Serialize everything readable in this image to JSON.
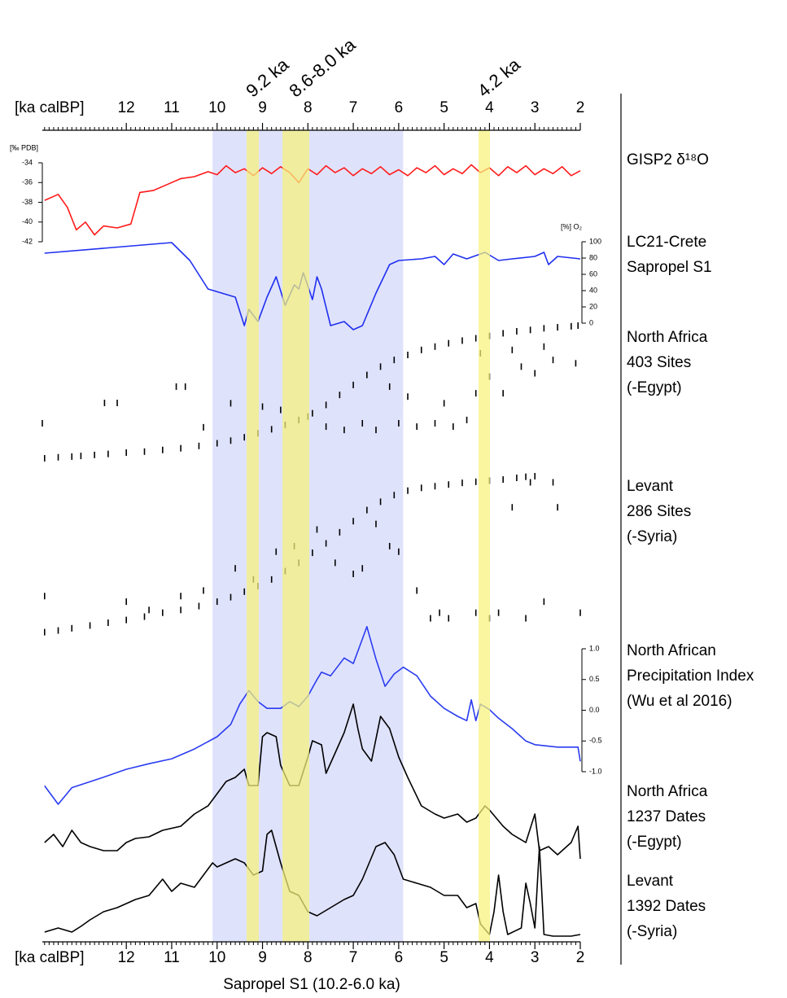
{
  "chart_data": {
    "type": "panels",
    "xlabel": "Sapropel S1 (10.2-6.0 ka)",
    "xunit": "[ka calBP]",
    "xlim": [
      13.85,
      2
    ],
    "xticks": [
      12,
      11,
      10,
      9,
      8,
      7,
      6,
      5,
      4,
      3,
      2
    ],
    "bands": [
      {
        "from": 10.1,
        "to": 5.9,
        "color": "#dfe2fb"
      },
      {
        "from": 9.35,
        "to": 9.08,
        "color": "#f6f27a",
        "label": "9.2 ka"
      },
      {
        "from": 8.56,
        "to": 7.97,
        "color": "#f6f27a",
        "label": "8.6-8.0 ka"
      },
      {
        "from": 4.24,
        "to": 3.99,
        "color": "#f6f27a",
        "label": "4.2 ka"
      }
    ],
    "panels": [
      {
        "type": "line",
        "label": [
          "GISP2 δ¹⁸O"
        ],
        "color": "#ff1a1a",
        "ylabel": "[‰ PDB]",
        "yaxis": "left",
        "ylim": [
          -42,
          -34
        ],
        "yticks": [
          -34,
          -36,
          -38,
          -40,
          -42
        ],
        "x": [
          13.8,
          13.5,
          13.3,
          13.1,
          12.9,
          12.7,
          12.5,
          12.2,
          11.9,
          11.7,
          11.4,
          11.1,
          10.8,
          10.5,
          10.2,
          10.0,
          9.8,
          9.6,
          9.4,
          9.2,
          9.0,
          8.8,
          8.6,
          8.4,
          8.2,
          8.0,
          7.8,
          7.6,
          7.4,
          7.2,
          7.0,
          6.8,
          6.6,
          6.4,
          6.2,
          6.0,
          5.8,
          5.6,
          5.4,
          5.2,
          5.0,
          4.8,
          4.6,
          4.4,
          4.2,
          4.0,
          3.8,
          3.6,
          3.4,
          3.2,
          3.0,
          2.8,
          2.6,
          2.4,
          2.2,
          2.0
        ],
        "values": [
          -37.8,
          -37.2,
          -38.5,
          -40.8,
          -40.0,
          -41.3,
          -40.4,
          -40.6,
          -40.2,
          -37.0,
          -36.8,
          -36.2,
          -35.6,
          -35.4,
          -34.9,
          -35.2,
          -34.3,
          -35.0,
          -34.6,
          -35.3,
          -34.5,
          -35.1,
          -34.4,
          -35.0,
          -36.0,
          -34.6,
          -35.2,
          -34.3,
          -35.0,
          -34.5,
          -35.3,
          -34.6,
          -35.1,
          -34.4,
          -35.2,
          -34.7,
          -35.3,
          -34.5,
          -35.0,
          -34.3,
          -35.2,
          -34.6,
          -35.1,
          -34.2,
          -35.0,
          -34.5,
          -35.3,
          -34.4,
          -35.0,
          -34.3,
          -35.2,
          -34.6,
          -35.1,
          -34.4,
          -35.3,
          -34.8
        ]
      },
      {
        "type": "line",
        "label": [
          "LC21-Crete",
          "Sapropel S1"
        ],
        "color": "#1f2ff0",
        "ylabel": "[%] O₂",
        "yaxis": "right",
        "ylim": [
          0,
          100
        ],
        "yticks": [
          0,
          20,
          40,
          60,
          80,
          100
        ],
        "x": [
          13.8,
          11.0,
          10.6,
          10.2,
          9.9,
          9.6,
          9.4,
          9.3,
          9.1,
          8.9,
          8.7,
          8.5,
          8.3,
          8.2,
          8.1,
          7.9,
          7.8,
          7.7,
          7.5,
          7.2,
          7.0,
          6.8,
          6.5,
          6.2,
          6.0,
          5.5,
          5.2,
          5.0,
          4.8,
          4.5,
          4.1,
          3.8,
          3.5,
          3.0,
          2.8,
          2.7,
          2.5,
          2.0
        ],
        "values": [
          86,
          99,
          77,
          42,
          37,
          32,
          -3,
          17,
          2,
          32,
          57,
          22,
          47,
          42,
          62,
          29,
          57,
          42,
          -3,
          2,
          -8,
          -3,
          37,
          72,
          77,
          79,
          82,
          72,
          85,
          79,
          87,
          77,
          79,
          82,
          87,
          72,
          82,
          79
        ]
      },
      {
        "type": "scatter",
        "label": [
          "North Africa",
          "403 Sites",
          "(-Egypt)"
        ],
        "color": "#000000",
        "ylim": [
          0,
          403
        ],
        "x": [
          13.8,
          13.5,
          13.2,
          13.0,
          12.7,
          12.4,
          12.0,
          11.6,
          11.2,
          10.8,
          10.4,
          10.0,
          9.7,
          9.4,
          9.1,
          8.8,
          8.5,
          8.2,
          7.9,
          7.6,
          7.3,
          7.0,
          6.7,
          6.4,
          6.1,
          5.8,
          5.5,
          5.2,
          4.9,
          4.6,
          4.3,
          4.0,
          3.7,
          3.4,
          3.1,
          2.8,
          2.5,
          2.2,
          2.05,
          13.85,
          12.48,
          12.2,
          10.9,
          10.7,
          10.3,
          9.7,
          9.0,
          8.6,
          8.0,
          7.6,
          7.2,
          6.8,
          6.5,
          6.0,
          5.6,
          5.2,
          4.8,
          4.5,
          4.3,
          4.0,
          3.7,
          3.3,
          3.0,
          2.6,
          2.1,
          5.0,
          5.8,
          6.2,
          4.2,
          2.8,
          3.5
        ],
        "values": [
          5,
          8,
          10,
          12,
          15,
          18,
          22,
          25,
          30,
          35,
          42,
          50,
          58,
          68,
          80,
          92,
          105,
          120,
          140,
          165,
          195,
          225,
          255,
          280,
          300,
          315,
          330,
          340,
          350,
          358,
          365,
          372,
          380,
          386,
          390,
          395,
          398,
          401,
          403,
          110,
          171,
          171,
          220,
          220,
          98,
          170,
          160,
          150,
          130,
          100,
          90,
          110,
          90,
          110,
          100,
          110,
          100,
          120,
          200,
          250,
          200,
          280,
          260,
          300,
          290,
          170,
          190,
          220,
          320,
          340,
          330
        ]
      },
      {
        "type": "scatter",
        "label": [
          "Levant",
          "286 Sites",
          "(-Syria)"
        ],
        "color": "#000000",
        "ylim": [
          0,
          286
        ],
        "x": [
          13.8,
          13.5,
          13.2,
          12.8,
          12.4,
          12.0,
          11.6,
          11.2,
          10.8,
          10.4,
          10.0,
          9.7,
          9.4,
          9.1,
          8.8,
          8.5,
          8.2,
          7.9,
          7.6,
          7.3,
          7.0,
          6.7,
          6.4,
          6.1,
          5.8,
          5.5,
          5.2,
          4.9,
          4.6,
          4.3,
          4.0,
          3.7,
          3.4,
          3.2,
          3.0,
          13.8,
          12.0,
          11.5,
          10.8,
          10.3,
          9.6,
          9.2,
          8.7,
          8.3,
          7.8,
          7.4,
          7.0,
          6.8,
          6.5,
          6.2,
          6.0,
          5.6,
          5.3,
          5.1,
          4.9,
          4.3,
          4.0,
          3.8,
          3.5,
          3.2,
          2.8,
          2.5,
          2.0,
          2.6,
          3.1
        ],
        "values": [
          5,
          8,
          12,
          17,
          22,
          27,
          33,
          40,
          45,
          52,
          60,
          68,
          78,
          88,
          100,
          115,
          130,
          148,
          165,
          185,
          205,
          225,
          240,
          252,
          260,
          265,
          268,
          271,
          274,
          276,
          278,
          280,
          283,
          285,
          286,
          70,
          60,
          45,
          70,
          80,
          120,
          100,
          150,
          160,
          190,
          130,
          110,
          120,
          200,
          160,
          150,
          80,
          30,
          40,
          30,
          40,
          30,
          40,
          230,
          30,
          60,
          230,
          40,
          275,
          275
        ]
      },
      {
        "type": "line",
        "label": [
          "North African",
          "Precipitation Index",
          "(Wu et al 2016)"
        ],
        "color": "#2a3cf0",
        "yaxis": "right",
        "ylim": [
          -1,
          1
        ],
        "yticks": [
          {
            "value": 1,
            "label": "1.0"
          },
          {
            "value": 0.5,
            "label": "0.5"
          },
          {
            "value": 0,
            "label": "0.0"
          },
          {
            "value": -0.5,
            "label": "-0.5"
          },
          {
            "value": -1,
            "label": "-1.0"
          }
        ],
        "x": [
          13.8,
          13.5,
          13.2,
          12.5,
          12.0,
          11.5,
          11.0,
          10.5,
          10.0,
          9.7,
          9.5,
          9.3,
          9.1,
          8.9,
          8.6,
          8.4,
          8.2,
          8.0,
          7.8,
          7.7,
          7.5,
          7.2,
          7.0,
          6.8,
          6.7,
          6.5,
          6.3,
          6.1,
          5.9,
          5.6,
          5.3,
          5.0,
          4.7,
          4.5,
          4.4,
          4.3,
          4.2,
          4.0,
          3.8,
          3.5,
          3.2,
          3.0,
          2.5,
          2.05,
          2.0
        ],
        "values": [
          -1.23,
          -1.53,
          -1.26,
          -1.09,
          -0.96,
          -0.87,
          -0.79,
          -0.63,
          -0.43,
          -0.23,
          0.1,
          0.32,
          0.14,
          0.03,
          0.03,
          0.14,
          0.06,
          0.23,
          0.5,
          0.62,
          0.56,
          0.85,
          0.76,
          1.16,
          1.36,
          0.83,
          0.39,
          0.59,
          0.7,
          0.56,
          0.23,
          0.03,
          -0.1,
          -0.17,
          0.17,
          -0.17,
          0.1,
          0.01,
          -0.13,
          -0.3,
          -0.5,
          -0.56,
          -0.6,
          -0.6,
          -0.83
        ]
      },
      {
        "type": "line",
        "label": [
          "North Africa",
          "1237 Dates",
          "(-Egypt)"
        ],
        "color": "#000000",
        "ylim": [
          0,
          200
        ],
        "x": [
          13.8,
          13.6,
          13.4,
          13.2,
          13.0,
          12.8,
          12.5,
          12.2,
          12.0,
          11.8,
          11.5,
          11.2,
          10.8,
          10.5,
          10.2,
          10.0,
          9.8,
          9.6,
          9.4,
          9.3,
          9.1,
          9.0,
          8.9,
          8.7,
          8.6,
          8.4,
          8.2,
          8.0,
          7.9,
          7.7,
          7.6,
          7.4,
          7.2,
          7.0,
          6.9,
          6.8,
          6.6,
          6.4,
          6.2,
          6.0,
          5.8,
          5.5,
          5.2,
          5.0,
          4.7,
          4.5,
          4.3,
          4.1,
          4.0,
          3.7,
          3.5,
          3.2,
          3.0,
          2.9,
          2.7,
          2.5,
          2.2,
          2.05,
          2.0
        ],
        "values": [
          15,
          25,
          10,
          30,
          15,
          10,
          5,
          5,
          15,
          20,
          22,
          30,
          35,
          50,
          60,
          75,
          90,
          95,
          105,
          85,
          85,
          145,
          150,
          145,
          110,
          85,
          85,
          120,
          140,
          135,
          100,
          125,
          150,
          185,
          155,
          130,
          115,
          170,
          155,
          120,
          95,
          60,
          50,
          45,
          50,
          40,
          45,
          60,
          55,
          35,
          25,
          15,
          50,
          5,
          10,
          0,
          15,
          35,
          -5
        ]
      },
      {
        "type": "line",
        "label": [
          "Levant",
          "1392 Dates",
          "(-Syria)"
        ],
        "color": "#000000",
        "ylim": [
          0,
          120
        ],
        "x": [
          13.8,
          13.5,
          13.2,
          13.0,
          12.8,
          12.5,
          12.2,
          12.0,
          11.8,
          11.5,
          11.2,
          11.0,
          10.8,
          10.5,
          10.3,
          10.1,
          10.0,
          9.8,
          9.6,
          9.4,
          9.2,
          9.0,
          8.9,
          8.8,
          8.6,
          8.4,
          8.2,
          8.0,
          7.8,
          7.5,
          7.2,
          7.0,
          6.8,
          6.5,
          6.3,
          6.1,
          5.9,
          5.6,
          5.3,
          5.0,
          4.7,
          4.5,
          4.3,
          4.2,
          4.0,
          3.9,
          3.8,
          3.7,
          3.6,
          3.3,
          3.2,
          3.1,
          3.0,
          2.9,
          2.8,
          2.6,
          2.2,
          2.0
        ],
        "values": [
          5,
          10,
          5,
          12,
          20,
          30,
          35,
          40,
          45,
          50,
          70,
          55,
          65,
          60,
          75,
          90,
          85,
          90,
          95,
          90,
          75,
          80,
          125,
          130,
          90,
          55,
          50,
          30,
          25,
          35,
          45,
          50,
          70,
          110,
          115,
          100,
          70,
          65,
          60,
          50,
          50,
          35,
          40,
          15,
          2,
          30,
          75,
          30,
          2,
          10,
          65,
          40,
          10,
          110,
          2,
          0,
          0,
          2
        ]
      }
    ]
  }
}
